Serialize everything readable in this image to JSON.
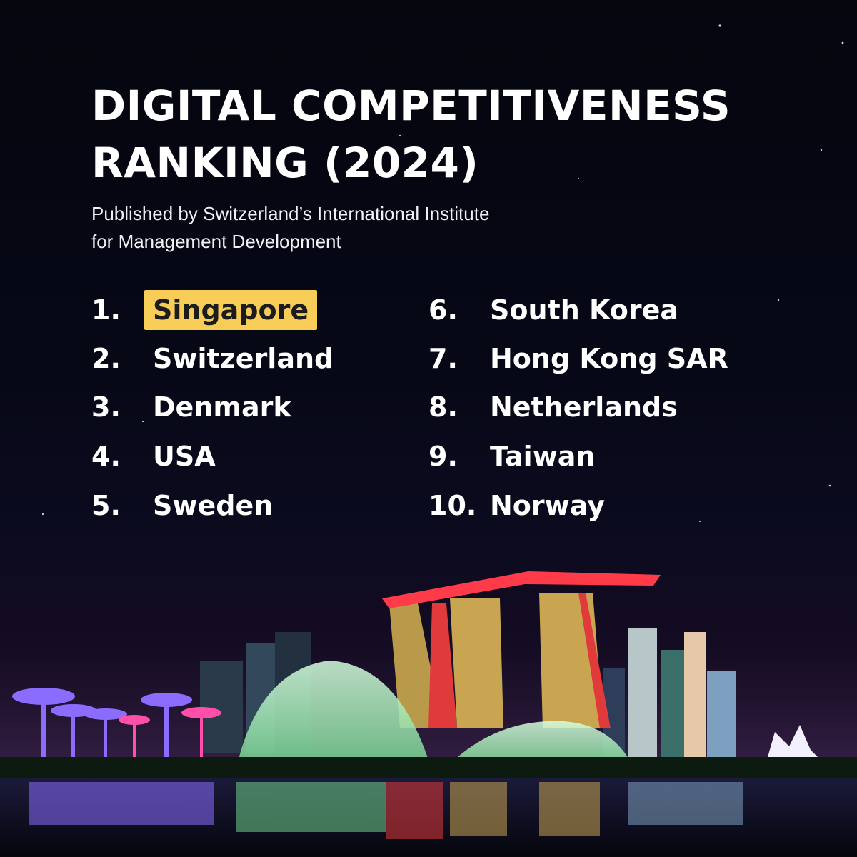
{
  "title_lines": [
    "DIGITAL COMPETITIVENESS",
    "RANKING (2024)"
  ],
  "subtitle_lines": [
    "Published by Switzerland’s International Institute",
    "for Management Development"
  ],
  "rankings_left": [
    {
      "num": "1.",
      "name": "Singapore"
    },
    {
      "num": "2.",
      "name": "Switzerland"
    },
    {
      "num": "3.",
      "name": "Denmark"
    },
    {
      "num": "4.",
      "name": "USA"
    },
    {
      "num": "5.",
      "name": "Sweden"
    }
  ],
  "rankings_right": [
    {
      "num": "6.",
      "name": "South Korea"
    },
    {
      "num": "7.",
      "name": "Hong Kong SAR"
    },
    {
      "num": "8.",
      "name": "Netherlands"
    },
    {
      "num": "9.",
      "name": "Taiwan"
    },
    {
      "num": "10.",
      "name": "Norway"
    }
  ],
  "colors": {
    "highlight": "#f7cd58",
    "text": "#ffffff",
    "background": "#05060f"
  }
}
